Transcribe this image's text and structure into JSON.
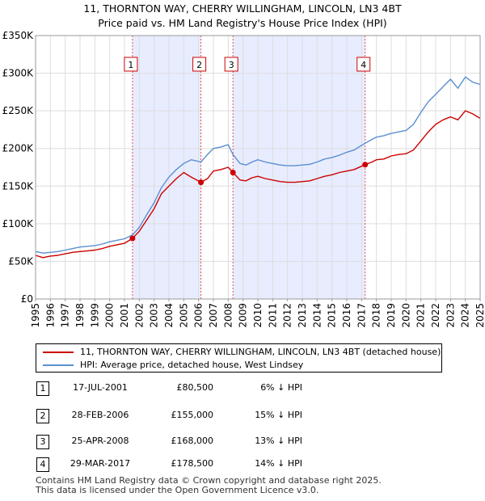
{
  "header": {
    "title_line1": "11, THORNTON WAY, CHERRY WILLINGHAM, LINCOLN, LN3 4BT",
    "title_line2": "Price paid vs. HM Land Registry's House Price Index (HPI)"
  },
  "colors": {
    "red": "#cc0000",
    "blue": "#5b8fd0",
    "shade": "#e8ecff",
    "vline": "#e05050"
  },
  "chart_data": {
    "type": "line",
    "title": "Price paid vs. HM Land Registry's House Price Index (HPI)",
    "xlabel": "",
    "ylabel": "",
    "xlim": [
      1995,
      2025
    ],
    "ylim": [
      0,
      350000
    ],
    "x_ticks": [
      "1995",
      "1996",
      "1997",
      "1998",
      "1999",
      "2000",
      "2001",
      "2002",
      "2003",
      "2004",
      "2005",
      "2006",
      "2007",
      "2008",
      "2009",
      "2010",
      "2011",
      "2012",
      "2013",
      "2014",
      "2015",
      "2016",
      "2017",
      "2018",
      "2019",
      "2020",
      "2021",
      "2022",
      "2023",
      "2024",
      "2025"
    ],
    "y_ticks": [
      {
        "value": 0,
        "label": "£0"
      },
      {
        "value": 50000,
        "label": "£50K"
      },
      {
        "value": 100000,
        "label": "£100K"
      },
      {
        "value": 150000,
        "label": "£150K"
      },
      {
        "value": 200000,
        "label": "£200K"
      },
      {
        "value": 250000,
        "label": "£250K"
      },
      {
        "value": 300000,
        "label": "£300K"
      },
      {
        "value": 350000,
        "label": "£350K"
      }
    ],
    "shaded_periods": [
      [
        2001.54,
        2006.16
      ],
      [
        2008.32,
        2017.24
      ]
    ],
    "series": [
      {
        "name": "11, THORNTON WAY, CHERRY WILLINGHAM, LINCOLN, LN3 4BT (detached house)",
        "color": "#cc0000",
        "x": [
          1995.0,
          1995.5,
          1996.0,
          1996.5,
          1997.0,
          1997.5,
          1998.0,
          1998.5,
          1999.0,
          1999.5,
          2000.0,
          2000.5,
          2001.0,
          2001.54,
          2002.0,
          2002.5,
          2003.0,
          2003.5,
          2004.0,
          2004.5,
          2005.0,
          2005.5,
          2006.16,
          2006.6,
          2007.0,
          2007.5,
          2008.0,
          2008.32,
          2008.8,
          2009.2,
          2009.6,
          2010.0,
          2010.5,
          2011.0,
          2011.5,
          2012.0,
          2012.5,
          2013.0,
          2013.5,
          2014.0,
          2014.5,
          2015.0,
          2015.5,
          2016.0,
          2016.5,
          2017.24,
          2017.7,
          2018.0,
          2018.5,
          2019.0,
          2019.5,
          2020.0,
          2020.5,
          2021.0,
          2021.5,
          2022.0,
          2022.5,
          2023.0,
          2023.5,
          2024.0,
          2024.5,
          2025.0
        ],
        "y": [
          58000,
          55000,
          57000,
          58000,
          60000,
          62000,
          63000,
          64000,
          65000,
          67000,
          70000,
          72000,
          74000,
          80500,
          90000,
          105000,
          120000,
          140000,
          150000,
          160000,
          168000,
          162000,
          155000,
          160000,
          170000,
          172000,
          175000,
          168000,
          158000,
          157000,
          161000,
          163000,
          160000,
          158000,
          156000,
          155000,
          155000,
          156000,
          157000,
          160000,
          163000,
          165000,
          168000,
          170000,
          172000,
          178500,
          182000,
          185000,
          186000,
          190000,
          192000,
          193000,
          198000,
          210000,
          222000,
          232000,
          238000,
          242000,
          238000,
          250000,
          246000,
          240000
        ]
      },
      {
        "name": "HPI: Average price, detached house, West Lindsey",
        "color": "#5b8fd0",
        "x": [
          1995.0,
          1995.5,
          1996.0,
          1996.5,
          1997.0,
          1997.5,
          1998.0,
          1998.5,
          1999.0,
          1999.5,
          2000.0,
          2000.5,
          2001.0,
          2001.54,
          2002.0,
          2002.5,
          2003.0,
          2003.5,
          2004.0,
          2004.5,
          2005.0,
          2005.5,
          2006.16,
          2006.6,
          2007.0,
          2007.5,
          2008.0,
          2008.32,
          2008.8,
          2009.2,
          2009.6,
          2010.0,
          2010.5,
          2011.0,
          2011.5,
          2012.0,
          2012.5,
          2013.0,
          2013.5,
          2014.0,
          2014.5,
          2015.0,
          2015.5,
          2016.0,
          2016.5,
          2017.24,
          2017.7,
          2018.0,
          2018.5,
          2019.0,
          2019.5,
          2020.0,
          2020.5,
          2021.0,
          2021.5,
          2022.0,
          2022.5,
          2023.0,
          2023.5,
          2024.0,
          2024.5,
          2025.0
        ],
        "y": [
          63000,
          61000,
          62000,
          63000,
          65000,
          67000,
          69000,
          70000,
          71000,
          73000,
          76000,
          78000,
          80000,
          85000,
          95000,
          112000,
          128000,
          148000,
          162000,
          172000,
          180000,
          185000,
          182000,
          192000,
          200000,
          202000,
          205000,
          192000,
          180000,
          178000,
          182000,
          185000,
          182000,
          180000,
          178000,
          177000,
          177000,
          178000,
          179000,
          182000,
          186000,
          188000,
          191000,
          195000,
          198000,
          207000,
          212000,
          215000,
          217000,
          220000,
          222000,
          224000,
          232000,
          248000,
          262000,
          272000,
          282000,
          292000,
          280000,
          295000,
          288000,
          285000
        ]
      }
    ],
    "markers": [
      {
        "label": "1",
        "x": 2001.54,
        "y": 80500
      },
      {
        "label": "2",
        "x": 2006.16,
        "y": 155000
      },
      {
        "label": "3",
        "x": 2008.32,
        "y": 168000
      },
      {
        "label": "4",
        "x": 2017.24,
        "y": 178500
      }
    ]
  },
  "legend": {
    "red_label": "11, THORNTON WAY, CHERRY WILLINGHAM, LINCOLN, LN3 4BT (detached house)",
    "blue_label": "HPI: Average price, detached house, West Lindsey"
  },
  "transactions": [
    {
      "num": "1",
      "date": "17-JUL-2001",
      "price": "£80,500",
      "hpi": "6% ↓ HPI"
    },
    {
      "num": "2",
      "date": "28-FEB-2006",
      "price": "£155,000",
      "hpi": "15% ↓ HPI"
    },
    {
      "num": "3",
      "date": "25-APR-2008",
      "price": "£168,000",
      "hpi": "13% ↓ HPI"
    },
    {
      "num": "4",
      "date": "29-MAR-2017",
      "price": "£178,500",
      "hpi": "14% ↓ HPI"
    }
  ],
  "footer": {
    "line1": "Contains HM Land Registry data © Crown copyright and database right 2025.",
    "line2": "This data is licensed under the Open Government Licence v3.0."
  }
}
